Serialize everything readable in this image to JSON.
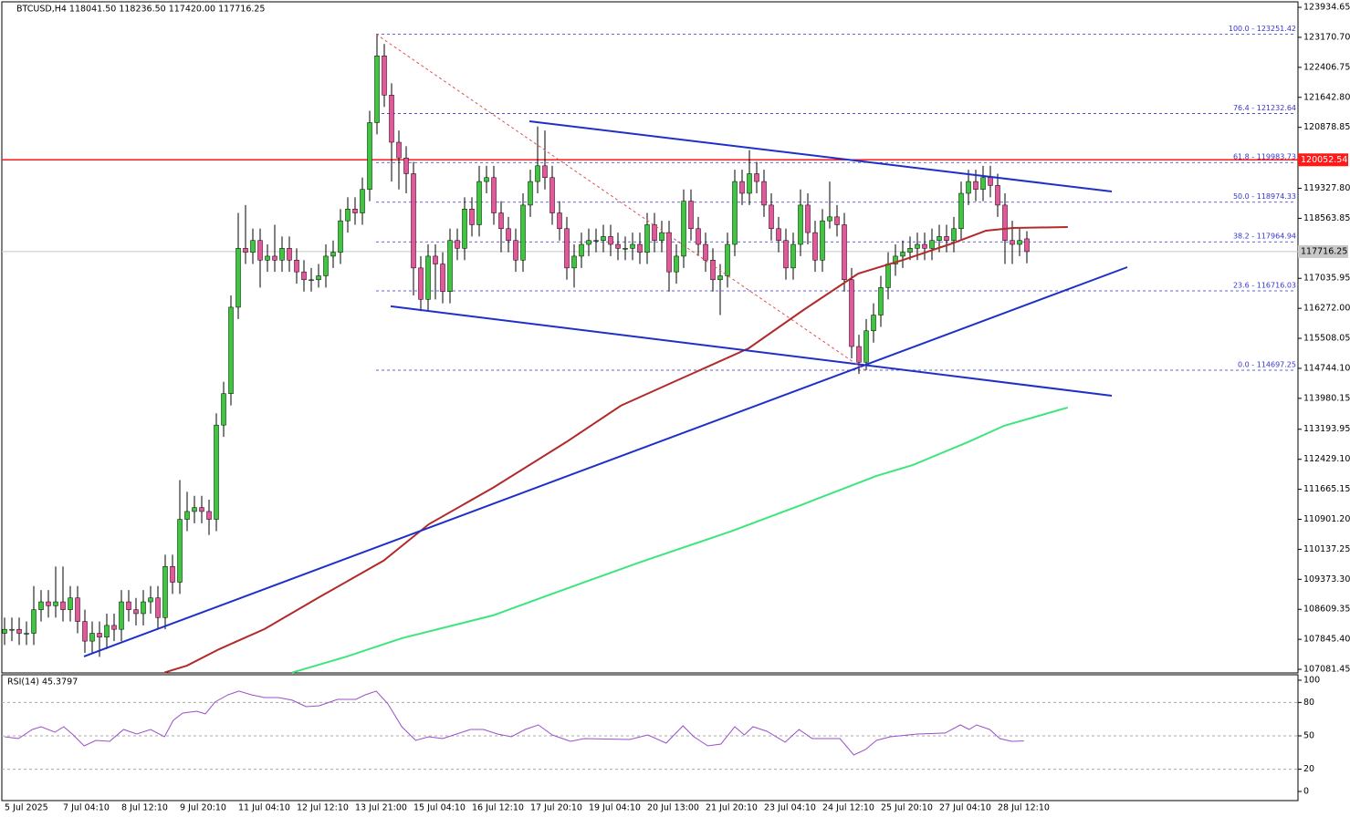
{
  "chart_data": [
    {
      "type": "candlestick",
      "title": "BTCUSD,H4  118041.50 118236.50 117420.00 117716.25",
      "categories": [
        "5 Jul 2025",
        null,
        null,
        null,
        null,
        null,
        null,
        null,
        "7 Jul 04:10",
        null,
        null,
        null,
        null,
        null,
        null,
        null,
        "8 Jul 12:10",
        null,
        null,
        null,
        null,
        null,
        null,
        null,
        "9 Jul 20:10",
        null,
        null,
        null,
        null,
        null,
        null,
        null,
        "11 Jul 04:10",
        null,
        null,
        null,
        null,
        null,
        null,
        null,
        "12 Jul 12:10",
        null,
        null,
        null,
        null,
        null,
        null,
        null,
        "13 Jul 21:00",
        null,
        null,
        null,
        null,
        null,
        null,
        null,
        "15 Jul 04:10",
        null,
        null,
        null,
        null,
        null,
        null,
        null,
        "16 Jul 12:10",
        null,
        null,
        null,
        null,
        null,
        null,
        null,
        "17 Jul 20:10",
        null,
        null,
        null,
        null,
        null,
        null,
        null,
        "19 Jul 04:10",
        null,
        null,
        null,
        null,
        null,
        null,
        null,
        "20 Jul 13:00",
        null,
        null,
        null,
        null,
        null,
        null,
        null,
        "21 Jul 20:10",
        null,
        null,
        null,
        null,
        null,
        null,
        null,
        "23 Jul 04:10",
        null,
        null,
        null,
        null,
        null,
        null,
        null,
        "24 Jul 12:10",
        null,
        null,
        null,
        null,
        null,
        null,
        null,
        "25 Jul 20:10",
        null,
        null,
        null,
        null,
        null,
        null,
        null,
        "27 Jul 04:10",
        null,
        null,
        null,
        null,
        null,
        null,
        null,
        "28 Jul 12:10",
        null,
        null,
        null,
        null
      ],
      "open": [
        108000,
        108100,
        108100,
        108000,
        108000,
        108600,
        108800,
        108700,
        108800,
        108600,
        108900,
        108300,
        107800,
        108000,
        107900,
        108200,
        108100,
        108800,
        108600,
        108500,
        108800,
        108900,
        108400,
        109700,
        109300,
        110900,
        111100,
        111200,
        111100,
        110900,
        113300,
        114100,
        116300,
        117800,
        117700,
        118000,
        117500,
        117600,
        117500,
        117800,
        117500,
        117200,
        117000,
        117000,
        117100,
        117600,
        117700,
        118500,
        118800,
        118700,
        119300,
        121000,
        122700,
        121700,
        120500,
        120100,
        119700,
        117300,
        116500,
        117600,
        117400,
        116700,
        118000,
        117800,
        118800,
        118400,
        119500,
        119600,
        118700,
        118300,
        118000,
        117500,
        118900,
        119500,
        119900,
        119600,
        118700,
        118300,
        117300,
        117600,
        117900,
        118000,
        118000,
        118100,
        117900,
        117800,
        117800,
        117900,
        117700,
        118400,
        118000,
        118200,
        117200,
        117600,
        119000,
        118300,
        117900,
        117500,
        117000,
        117100,
        117900,
        119500,
        119200,
        119700,
        119500,
        118900,
        118300,
        118000,
        117300,
        117900,
        118900,
        118200,
        117500,
        118500,
        118600,
        118400,
        117000,
        115300,
        114900,
        115700,
        116100,
        116800,
        117400,
        117600,
        117700,
        117800,
        117900,
        117800,
        118000,
        118100,
        118000,
        118300,
        119200,
        119500,
        119300,
        119600,
        119400,
        118900,
        118000,
        117900,
        118041.5
      ],
      "high": [
        108400,
        108400,
        108400,
        108300,
        109200,
        109100,
        109100,
        109700,
        109700,
        109200,
        109200,
        108600,
        108300,
        108300,
        108500,
        108500,
        109100,
        109100,
        108900,
        109100,
        109200,
        109200,
        110000,
        110000,
        111900,
        111600,
        111500,
        111500,
        111400,
        113600,
        114400,
        116600,
        118700,
        118900,
        118300,
        118300,
        117900,
        118400,
        118100,
        118100,
        117800,
        117500,
        117300,
        117400,
        117900,
        118000,
        118800,
        119100,
        119100,
        119600,
        121300,
        123251.42,
        123000,
        122000,
        120800,
        120400,
        120000,
        117600,
        117900,
        117900,
        117700,
        118300,
        118300,
        119100,
        119100,
        119900,
        119900,
        119900,
        119000,
        118600,
        118300,
        119200,
        119800,
        120900,
        120800,
        119900,
        119000,
        118600,
        117900,
        118200,
        118300,
        118300,
        118400,
        118400,
        118200,
        118100,
        118200,
        118200,
        118700,
        118700,
        118500,
        118500,
        117900,
        119300,
        119300,
        118600,
        118200,
        117800,
        117400,
        118200,
        119800,
        119800,
        120300,
        120000,
        119800,
        119200,
        118600,
        118300,
        118200,
        119300,
        119200,
        118500,
        118800,
        119500,
        118900,
        118700,
        117300,
        115600,
        116000,
        116400,
        117100,
        117700,
        117900,
        118000,
        118100,
        118200,
        118200,
        118300,
        118400,
        118400,
        118600,
        119500,
        119800,
        119800,
        119900,
        119900,
        119700,
        119200,
        118500,
        118300,
        118236.5
      ],
      "low": [
        107700,
        107800,
        107700,
        107700,
        107700,
        108300,
        108400,
        108400,
        108300,
        108300,
        108000,
        107500,
        107500,
        107400,
        107600,
        107800,
        107800,
        108300,
        108200,
        108200,
        108500,
        108100,
        108100,
        109000,
        109000,
        110600,
        110800,
        110800,
        110500,
        110600,
        113000,
        113800,
        116000,
        117400,
        117400,
        116800,
        117200,
        117200,
        117200,
        117200,
        116900,
        116700,
        116700,
        116800,
        116800,
        117300,
        117400,
        118200,
        118400,
        118400,
        119000,
        120700,
        121400,
        119500,
        119300,
        119200,
        116600,
        116200,
        116200,
        116500,
        116400,
        116400,
        117500,
        117500,
        118100,
        118100,
        119200,
        118400,
        117700,
        117700,
        117200,
        117200,
        118600,
        119200,
        119300,
        118400,
        118000,
        117000,
        116800,
        117300,
        117600,
        117700,
        117700,
        117600,
        117500,
        117500,
        117500,
        117400,
        117400,
        117700,
        117700,
        116700,
        116900,
        117300,
        118000,
        117600,
        117200,
        116700,
        116100,
        116800,
        117600,
        118900,
        118900,
        119200,
        118600,
        118000,
        117700,
        117000,
        117000,
        117600,
        117900,
        117200,
        117200,
        118300,
        118100,
        116700,
        115000,
        114600,
        114697.25,
        115400,
        115800,
        116500,
        117100,
        117300,
        117500,
        117500,
        117500,
        117500,
        117700,
        117700,
        117700,
        118000,
        118900,
        119000,
        119000,
        119100,
        118600,
        117400,
        117400,
        117600,
        117420
      ],
      "close": [
        108100,
        108100,
        108000,
        108000,
        108600,
        108800,
        108700,
        108800,
        108600,
        108900,
        108300,
        107800,
        108000,
        107900,
        108200,
        108100,
        108800,
        108600,
        108500,
        108800,
        108900,
        108400,
        109700,
        109300,
        110900,
        111100,
        111200,
        111100,
        110900,
        113300,
        114100,
        116300,
        117800,
        117700,
        118000,
        117500,
        117600,
        117500,
        117800,
        117500,
        117200,
        117000,
        117000,
        117100,
        117600,
        117700,
        118500,
        118800,
        118700,
        119300,
        121000,
        122700,
        121700,
        120500,
        120100,
        119700,
        117300,
        116500,
        117600,
        117400,
        116700,
        118000,
        117800,
        118800,
        118400,
        119500,
        119600,
        118700,
        118300,
        118000,
        117500,
        118900,
        119500,
        119900,
        119600,
        118700,
        118300,
        117300,
        117600,
        117900,
        118000,
        118000,
        118100,
        117900,
        117800,
        117800,
        117900,
        117700,
        118400,
        118000,
        118200,
        117200,
        117600,
        119000,
        118300,
        117900,
        117500,
        117000,
        117100,
        117900,
        119500,
        119200,
        119700,
        119500,
        118900,
        118300,
        118000,
        117300,
        117900,
        118900,
        118200,
        117500,
        118500,
        118600,
        118400,
        117000,
        115300,
        114900,
        115700,
        116100,
        116800,
        117400,
        117600,
        117700,
        117800,
        117900,
        117800,
        118000,
        118100,
        118000,
        118300,
        119200,
        119500,
        119300,
        119600,
        119400,
        118900,
        118000,
        117900,
        118000,
        117716.25
      ],
      "up_color": "#3cc83c",
      "down_color": "#e8559b",
      "xlim": [
        -0.375,
        177.125
      ],
      "ylim": [
        106990,
        124075
      ],
      "yticks": [
        123934.65,
        {
          "value": 123170.7,
          "label": "123170.70"
        },
        122406.75,
        {
          "value": 121642.8,
          "label": "121642.80"
        },
        120878.85,
        {
          "value": 119327.8,
          "label": "119327.80"
        },
        118563.85,
        117035.95,
        {
          "value": 116272,
          "label": "116272.00"
        },
        115508.05,
        {
          "value": 114744.1,
          "label": "114744.10"
        },
        113980.15,
        113193.95,
        {
          "value": 112429.1,
          "label": "112429.10"
        },
        111665.15,
        {
          "value": 110901.2,
          "label": "110901.20"
        },
        110137.25,
        {
          "value": 109373.3,
          "label": "109373.30"
        },
        108609.35,
        {
          "value": 107845.4,
          "label": "107845.40"
        },
        107081.45
      ],
      "fib_color": "#3535c8",
      "fib": [
        {
          "value": 123251.42,
          "label": "100.0 - 123251.42"
        },
        {
          "value": 121232.64,
          "label": "76.4 - 121232.64"
        },
        {
          "value": 119983.73,
          "label": "61.8 - 119983.73"
        },
        {
          "value": 118974.33,
          "label": "50.0 - 118974.33"
        },
        {
          "value": 117964.94,
          "label": "38.2 - 117964.94"
        },
        {
          "value": 116716.03,
          "label": "23.6 - 116716.03"
        },
        {
          "value": 114697.25,
          "label": "0.0 - 114697.25"
        }
      ],
      "levels": [
        {
          "value": 120052.54,
          "color": "#ff1a1a",
          "text_color": "#ffffff"
        },
        {
          "value": 117716.25,
          "color": "#c8c8c8",
          "text_color": "#000000"
        }
      ],
      "lines": [
        {
          "color": "#b22a2a",
          "width": 2,
          "dashed": false,
          "x": [
            21.9,
            25,
            29.4,
            35.6,
            43.1,
            51.9,
            58.1,
            66.9,
            76.9,
            84.4,
            91.9,
            101.9,
            109.4,
            116.9,
            123.1,
            129.4,
            134.4,
            138.1,
            145.6
          ],
          "values": [
            107000,
            107178,
            107596,
            108107,
            108919,
            109847,
            110776,
            111704,
            112865,
            113793,
            114420,
            115255,
            116230,
            117158,
            117507,
            117901,
            118249,
            118319,
            118342
          ]
        },
        {
          "color": "#3ce67a",
          "width": 2,
          "dashed": false,
          "x": [
            39.4,
            46.9,
            54.4,
            66.9,
            74.4,
            86.9,
            99.4,
            109.4,
            119.4,
            124.4,
            131.9,
            136.9,
            145.6
          ],
          "values": [
            107000,
            107410,
            107874,
            108455,
            108965,
            109801,
            110590,
            111286,
            112006,
            112284,
            112865,
            113282,
            113747
          ]
        },
        {
          "color": "#1e30c8",
          "width": 2,
          "dashed": false,
          "x": [
            10.875,
            153.75
          ],
          "values": [
            107410,
            117321
          ]
        },
        {
          "color": "#1e30c8",
          "width": 2,
          "dashed": false,
          "x": [
            71.875,
            151.625
          ],
          "values": [
            121034,
            119247
          ]
        },
        {
          "color": "#1e30c8",
          "width": 2,
          "dashed": false,
          "x": [
            52.875,
            151.625
          ],
          "values": [
            116323,
            114048
          ]
        },
        {
          "color": "#e05050",
          "width": 1,
          "dashed": true,
          "x": [
            50.875,
            117.875
          ],
          "values": [
            123251.42,
            114697.25
          ]
        }
      ]
    },
    {
      "type": "line",
      "title": "RSI(14) 45.3797",
      "color": "#9a50c8",
      "x": [
        0,
        1.9,
        3.8,
        5,
        6.9,
        8.1,
        9.4,
        10.9,
        12.5,
        14.4,
        16.3,
        18.1,
        20,
        21.9,
        23.1,
        24.4,
        26.3,
        27.5,
        28.8,
        30.6,
        32.1,
        33.8,
        35.6,
        37.5,
        39.4,
        41.3,
        43.1,
        45.6,
        48.1,
        49.4,
        50.9,
        52.5,
        54.4,
        56.3,
        58.1,
        60,
        61.9,
        63.8,
        65.6,
        67.5,
        69.4,
        71.3,
        73.1,
        75,
        77.5,
        79.4,
        85.6,
        88.1,
        90.6,
        92.9,
        94.4,
        96.3,
        98.1,
        100,
        101.3,
        102.5,
        104.4,
        106.9,
        108.8,
        110.6,
        114.4,
        116.3,
        117.9,
        119.4,
        121.3,
        125,
        128.8,
        130.9,
        132.1,
        133.1,
        134.9,
        136.3,
        137.9,
        139.6
      ],
      "values": [
        49.2,
        47.5,
        55.7,
        58.2,
        53.3,
        58.2,
        50.8,
        41,
        45.9,
        45.1,
        55.7,
        51.6,
        55.7,
        49.2,
        63.9,
        70.5,
        72.1,
        69.7,
        80.3,
        86.9,
        90.2,
        86.9,
        84.4,
        84.4,
        82,
        76.2,
        77,
        82.8,
        82.8,
        86.9,
        90.2,
        78.7,
        58.2,
        45.9,
        49.2,
        47.5,
        51.6,
        55.7,
        55.7,
        51.6,
        49.2,
        55.7,
        59.8,
        50.8,
        45.1,
        47.5,
        46.7,
        50.8,
        43.4,
        59,
        49.2,
        41,
        42.6,
        58.2,
        50.8,
        58.2,
        54.1,
        44.3,
        55.7,
        47.5,
        47.5,
        32.8,
        37.7,
        45.9,
        49.2,
        51.6,
        52.5,
        59.8,
        55.7,
        59.8,
        55.7,
        47.5,
        45.1,
        45.38
      ],
      "xlim": [
        -0.375,
        177.125
      ],
      "ylim": [
        -8.2,
        104.9
      ],
      "yticks": [
        100,
        80,
        50,
        20,
        0
      ],
      "levels": [
        80,
        50,
        20
      ]
    }
  ]
}
